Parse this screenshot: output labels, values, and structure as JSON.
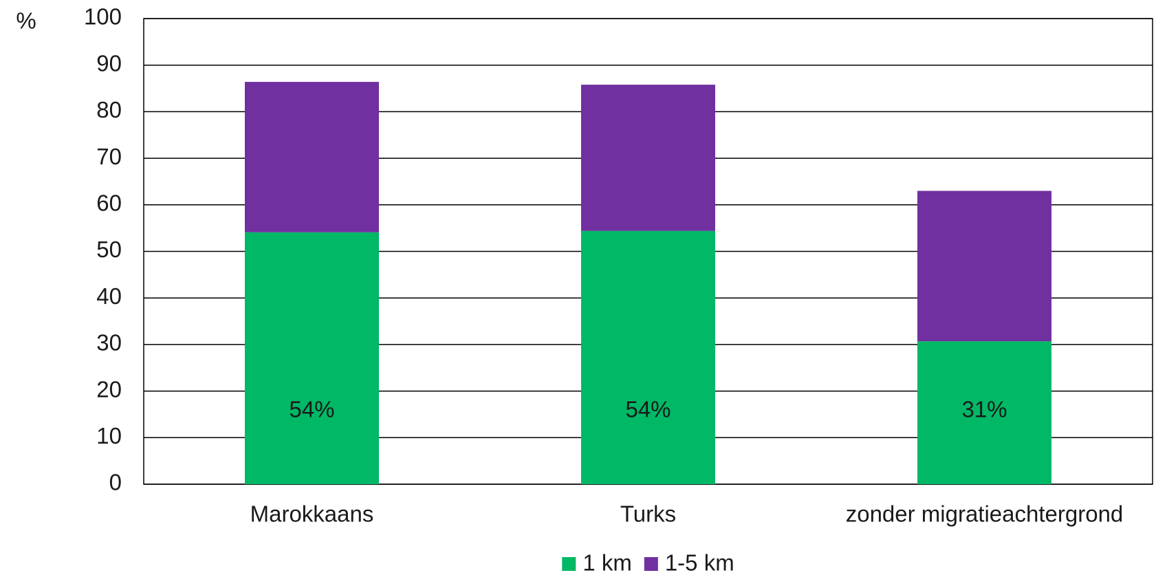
{
  "chart_data": {
    "type": "stacked_bar",
    "y_axis_label": "%",
    "categories": [
      "Marokkaans",
      "Turks",
      "zonder migratieachtergrond"
    ],
    "series": [
      {
        "name": "1 km",
        "color": "#00b866",
        "values": [
          54.1,
          54.4,
          30.7
        ],
        "value_labels": [
          "54%",
          "54%",
          "31%"
        ]
      },
      {
        "name": "1-5 km",
        "color": "#7030a0",
        "values": [
          32.3,
          31.4,
          32.3
        ]
      }
    ],
    "ylim": [
      0,
      100
    ],
    "yticks": [
      0,
      10,
      20,
      30,
      40,
      50,
      60,
      70,
      80,
      90,
      100
    ],
    "grid": true,
    "legend": "bottom"
  }
}
